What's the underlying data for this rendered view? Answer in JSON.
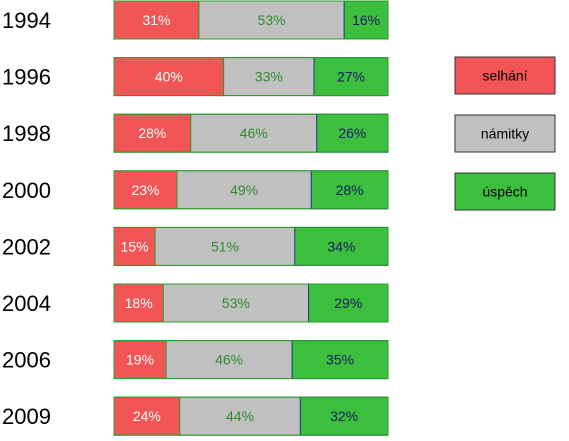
{
  "chart_data": {
    "type": "bar",
    "orientation": "horizontal",
    "stacked": true,
    "categories": [
      "1994",
      "1996",
      "1998",
      "2000",
      "2002",
      "2004",
      "2006",
      "2009"
    ],
    "series": [
      {
        "name": "selhání",
        "color": "#f25555",
        "label_color": "#ffffff",
        "values": [
          31,
          40,
          28,
          23,
          15,
          18,
          19,
          24
        ]
      },
      {
        "name": "námitky",
        "color": "#c0c0c0",
        "label_color": "#2e8b2e",
        "values": [
          53,
          33,
          46,
          49,
          51,
          53,
          46,
          44
        ]
      },
      {
        "name": "úspěch",
        "color": "#3cbf3c",
        "label_color": "#1a1a66",
        "values": [
          16,
          27,
          26,
          28,
          34,
          29,
          35,
          32
        ]
      }
    ],
    "value_suffix": "%",
    "legend_position": "right",
    "grid": false
  }
}
